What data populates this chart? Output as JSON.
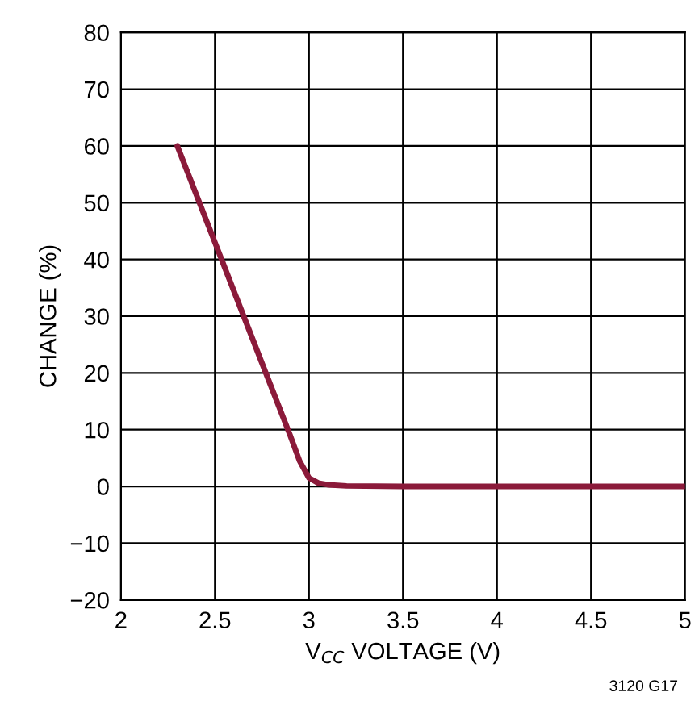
{
  "chart_data": {
    "type": "line",
    "xlabel": "V$_{CC}$ VOLTAGE (V)",
    "ylabel": "CHANGE (%)",
    "annotations": [
      "3120 G17"
    ],
    "x": [
      2.3,
      2.5,
      2.7,
      2.9,
      2.95,
      3.0,
      3.05,
      3.1,
      3.2,
      3.5,
      4,
      4.5,
      5
    ],
    "series": [
      {
        "color": "#8b1a3a",
        "values": [
          60,
          43,
          26,
          9,
          4.5,
          1.5,
          0.6,
          0.3,
          0.1,
          0,
          0,
          0,
          0
        ]
      }
    ],
    "xlim": [
      2,
      5
    ],
    "xticks": [
      2,
      2.5,
      3,
      3.5,
      4,
      4.5,
      5
    ],
    "ylim": [
      -20,
      80
    ],
    "yticks": [
      {
        "value": -20,
        "label": "−20"
      },
      {
        "value": -10,
        "label": "−10"
      },
      0,
      10,
      20,
      30,
      40,
      50,
      60,
      70,
      80
    ],
    "grid": true,
    "legend": false,
    "marker": "none",
    "line_style": "solid"
  }
}
